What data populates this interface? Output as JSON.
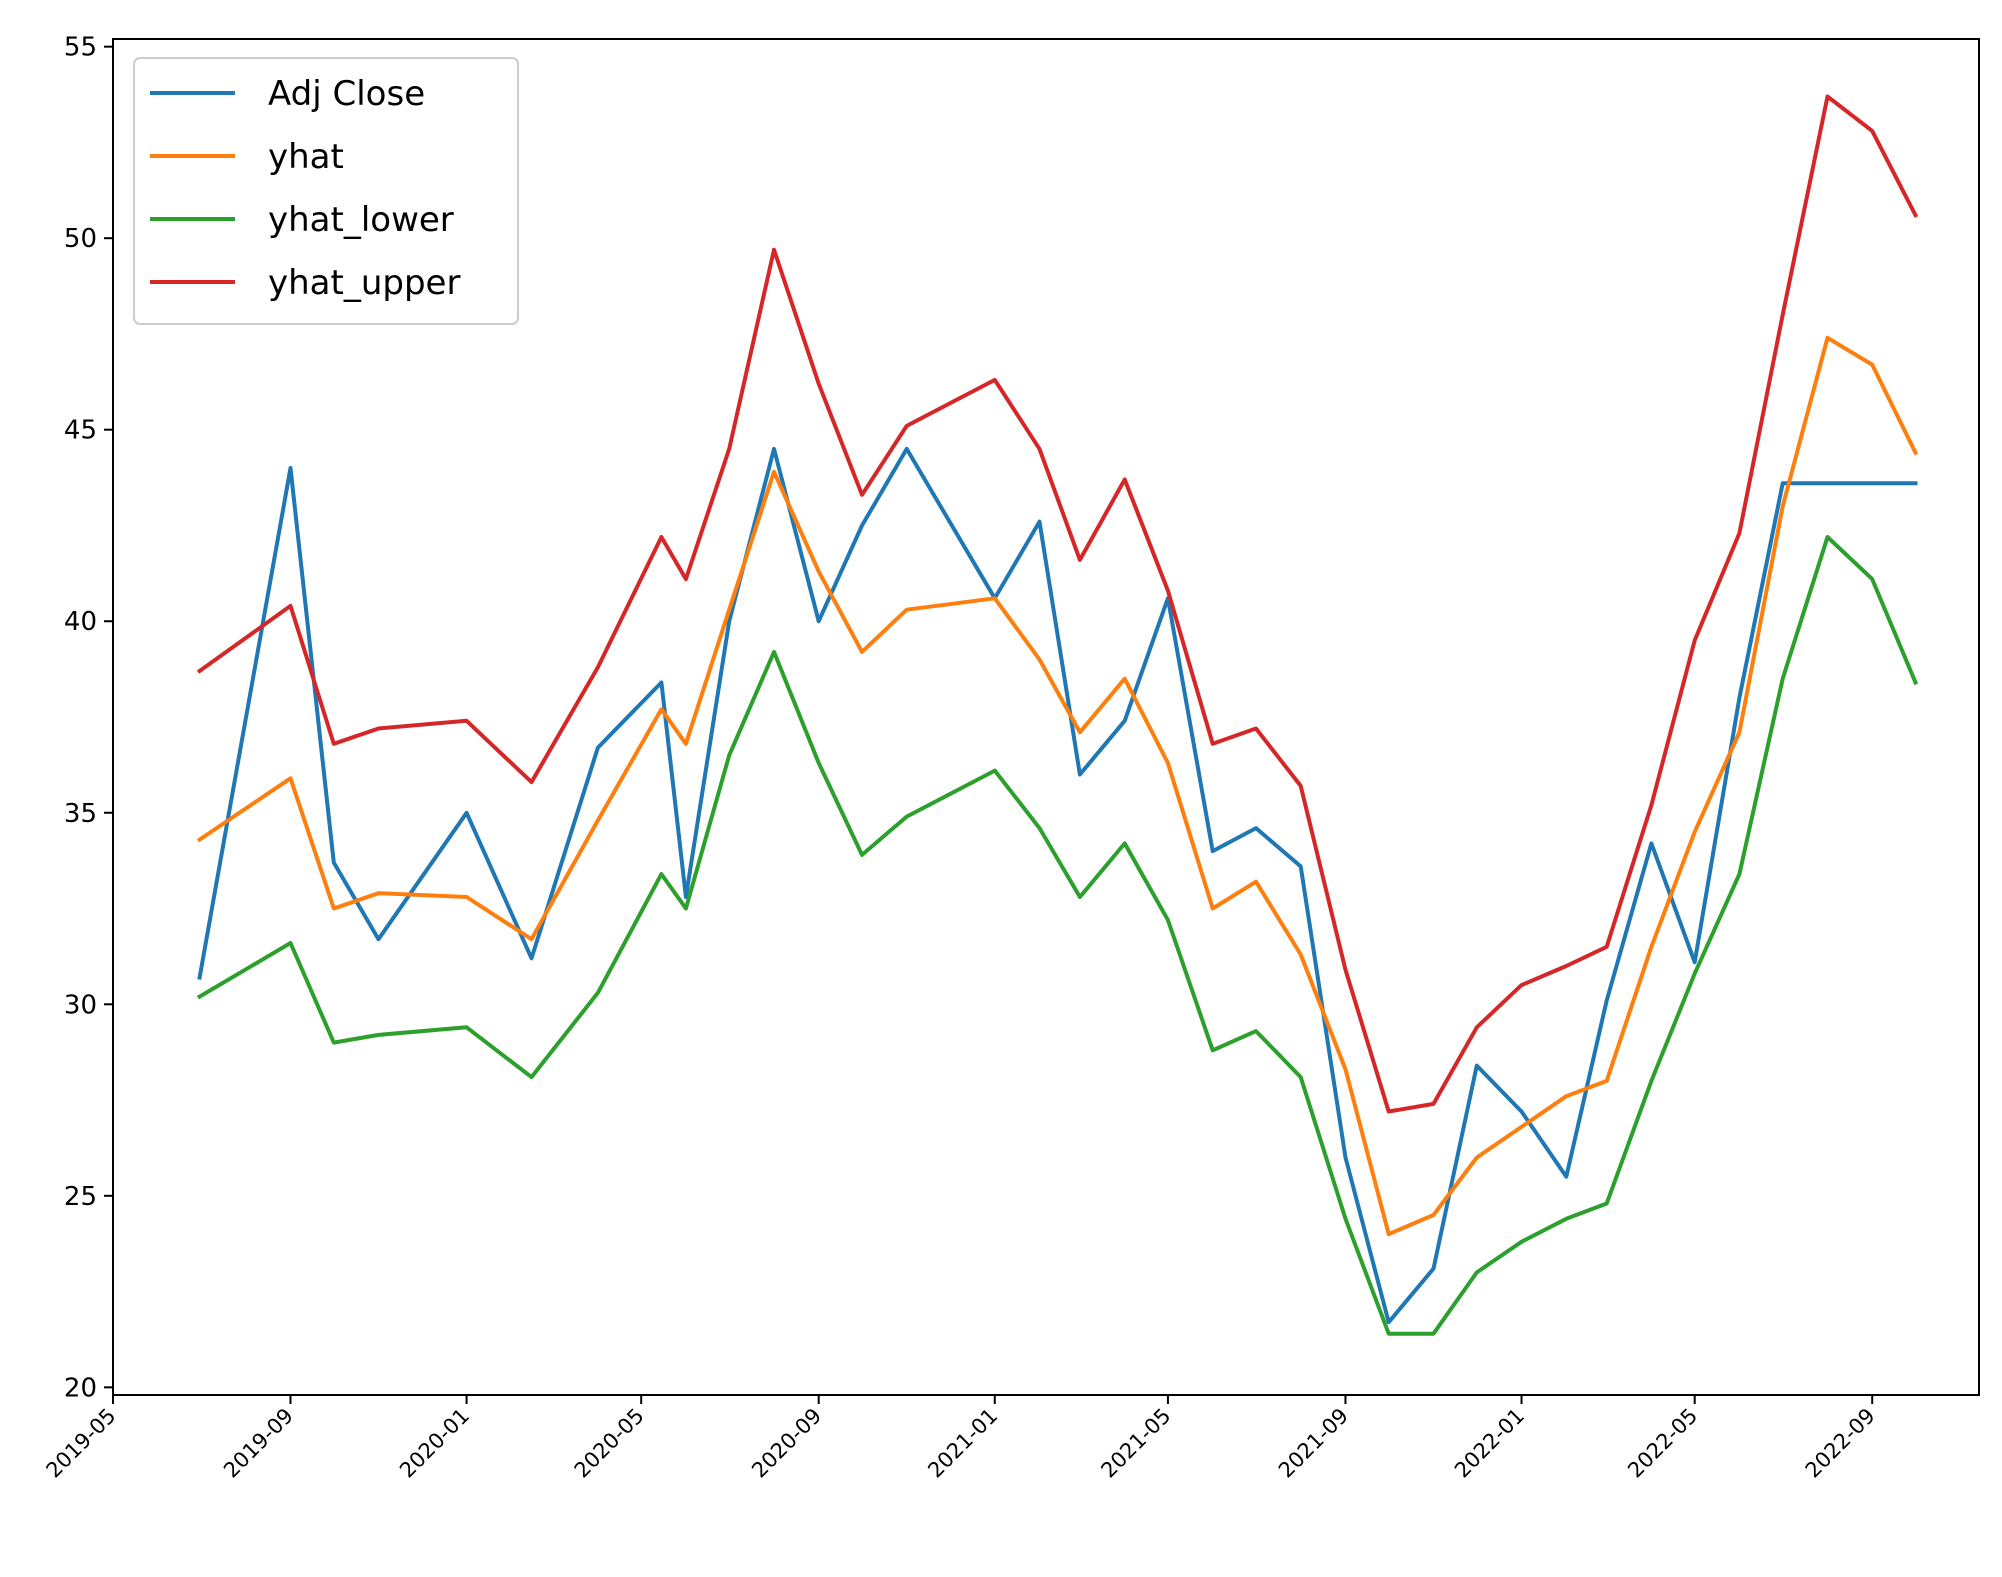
{
  "chart_data": {
    "type": "line",
    "title": "",
    "xlabel": "",
    "ylabel": "",
    "xlim": [
      "2019-05-01",
      "2022-11-14"
    ],
    "ylim": [
      19.8,
      55.2
    ],
    "yticks": [
      20,
      25,
      30,
      35,
      40,
      45,
      50,
      55
    ],
    "xticks": [
      "2019-05",
      "2019-09",
      "2020-01",
      "2020-05",
      "2020-09",
      "2021-01",
      "2021-05",
      "2021-09",
      "2022-01",
      "2022-05",
      "2022-09"
    ],
    "grid": false,
    "legend_position": "top-left",
    "x": [
      "2019-06-30",
      "2019-09-01",
      "2019-10-01",
      "2019-11-01",
      "2020-01-01",
      "2020-02-15",
      "2020-04-01",
      "2020-05-15",
      "2020-06-01",
      "2020-07-01",
      "2020-08-01",
      "2020-09-01",
      "2020-10-01",
      "2020-11-01",
      "2021-01-01",
      "2021-02-01",
      "2021-03-01",
      "2021-04-01",
      "2021-05-01",
      "2021-06-01",
      "2021-07-01",
      "2021-08-01",
      "2021-09-01",
      "2021-10-01",
      "2021-11-01",
      "2021-12-01",
      "2022-01-01",
      "2022-02-01",
      "2022-03-01",
      "2022-04-01",
      "2022-05-01",
      "2022-06-01",
      "2022-07-01",
      "2022-08-01",
      "2022-09-01",
      "2022-10-01"
    ],
    "series": [
      {
        "name": "Adj Close",
        "color": "#1f77b4",
        "values": [
          30.7,
          44.0,
          33.7,
          31.7,
          35.0,
          31.2,
          36.7,
          38.4,
          32.8,
          40.0,
          44.5,
          40.0,
          42.5,
          44.5,
          40.6,
          42.6,
          36.0,
          37.4,
          40.6,
          34.0,
          34.6,
          33.6,
          26.0,
          21.7,
          23.1,
          28.4,
          27.2,
          25.5,
          30.1,
          34.2,
          31.1,
          38.0,
          43.6,
          43.6,
          43.6,
          43.6
        ]
      },
      {
        "name": "yhat",
        "color": "#ff7f0e",
        "values": [
          34.3,
          35.9,
          32.5,
          32.9,
          32.8,
          31.7,
          34.8,
          37.7,
          36.8,
          40.3,
          43.9,
          41.3,
          39.2,
          40.3,
          40.6,
          39.0,
          37.1,
          38.5,
          36.3,
          32.5,
          33.2,
          31.3,
          28.3,
          24.0,
          24.5,
          26.0,
          26.8,
          27.6,
          28.0,
          31.5,
          34.5,
          37.1,
          43.0,
          47.4,
          46.7,
          44.4
        ]
      },
      {
        "name": "yhat_lower",
        "color": "#2ca02c",
        "values": [
          30.2,
          31.6,
          29.0,
          29.2,
          29.4,
          28.1,
          30.3,
          33.4,
          32.5,
          36.5,
          39.2,
          36.3,
          33.9,
          34.9,
          36.1,
          34.6,
          32.8,
          34.2,
          32.2,
          28.8,
          29.3,
          28.1,
          24.4,
          21.4,
          21.4,
          23.0,
          23.8,
          24.4,
          24.8,
          28.0,
          30.8,
          33.4,
          38.5,
          42.2,
          41.1,
          38.4
        ]
      },
      {
        "name": "yhat_upper",
        "color": "#d62728",
        "values": [
          38.7,
          40.4,
          36.8,
          37.2,
          37.4,
          35.8,
          38.8,
          42.2,
          41.1,
          44.5,
          49.7,
          46.2,
          43.3,
          45.1,
          46.3,
          44.5,
          41.6,
          43.7,
          40.8,
          36.8,
          37.2,
          35.7,
          30.9,
          27.2,
          27.4,
          29.4,
          30.5,
          31.0,
          31.5,
          35.2,
          39.5,
          42.3,
          48.0,
          53.7,
          52.8,
          50.6
        ]
      }
    ]
  }
}
